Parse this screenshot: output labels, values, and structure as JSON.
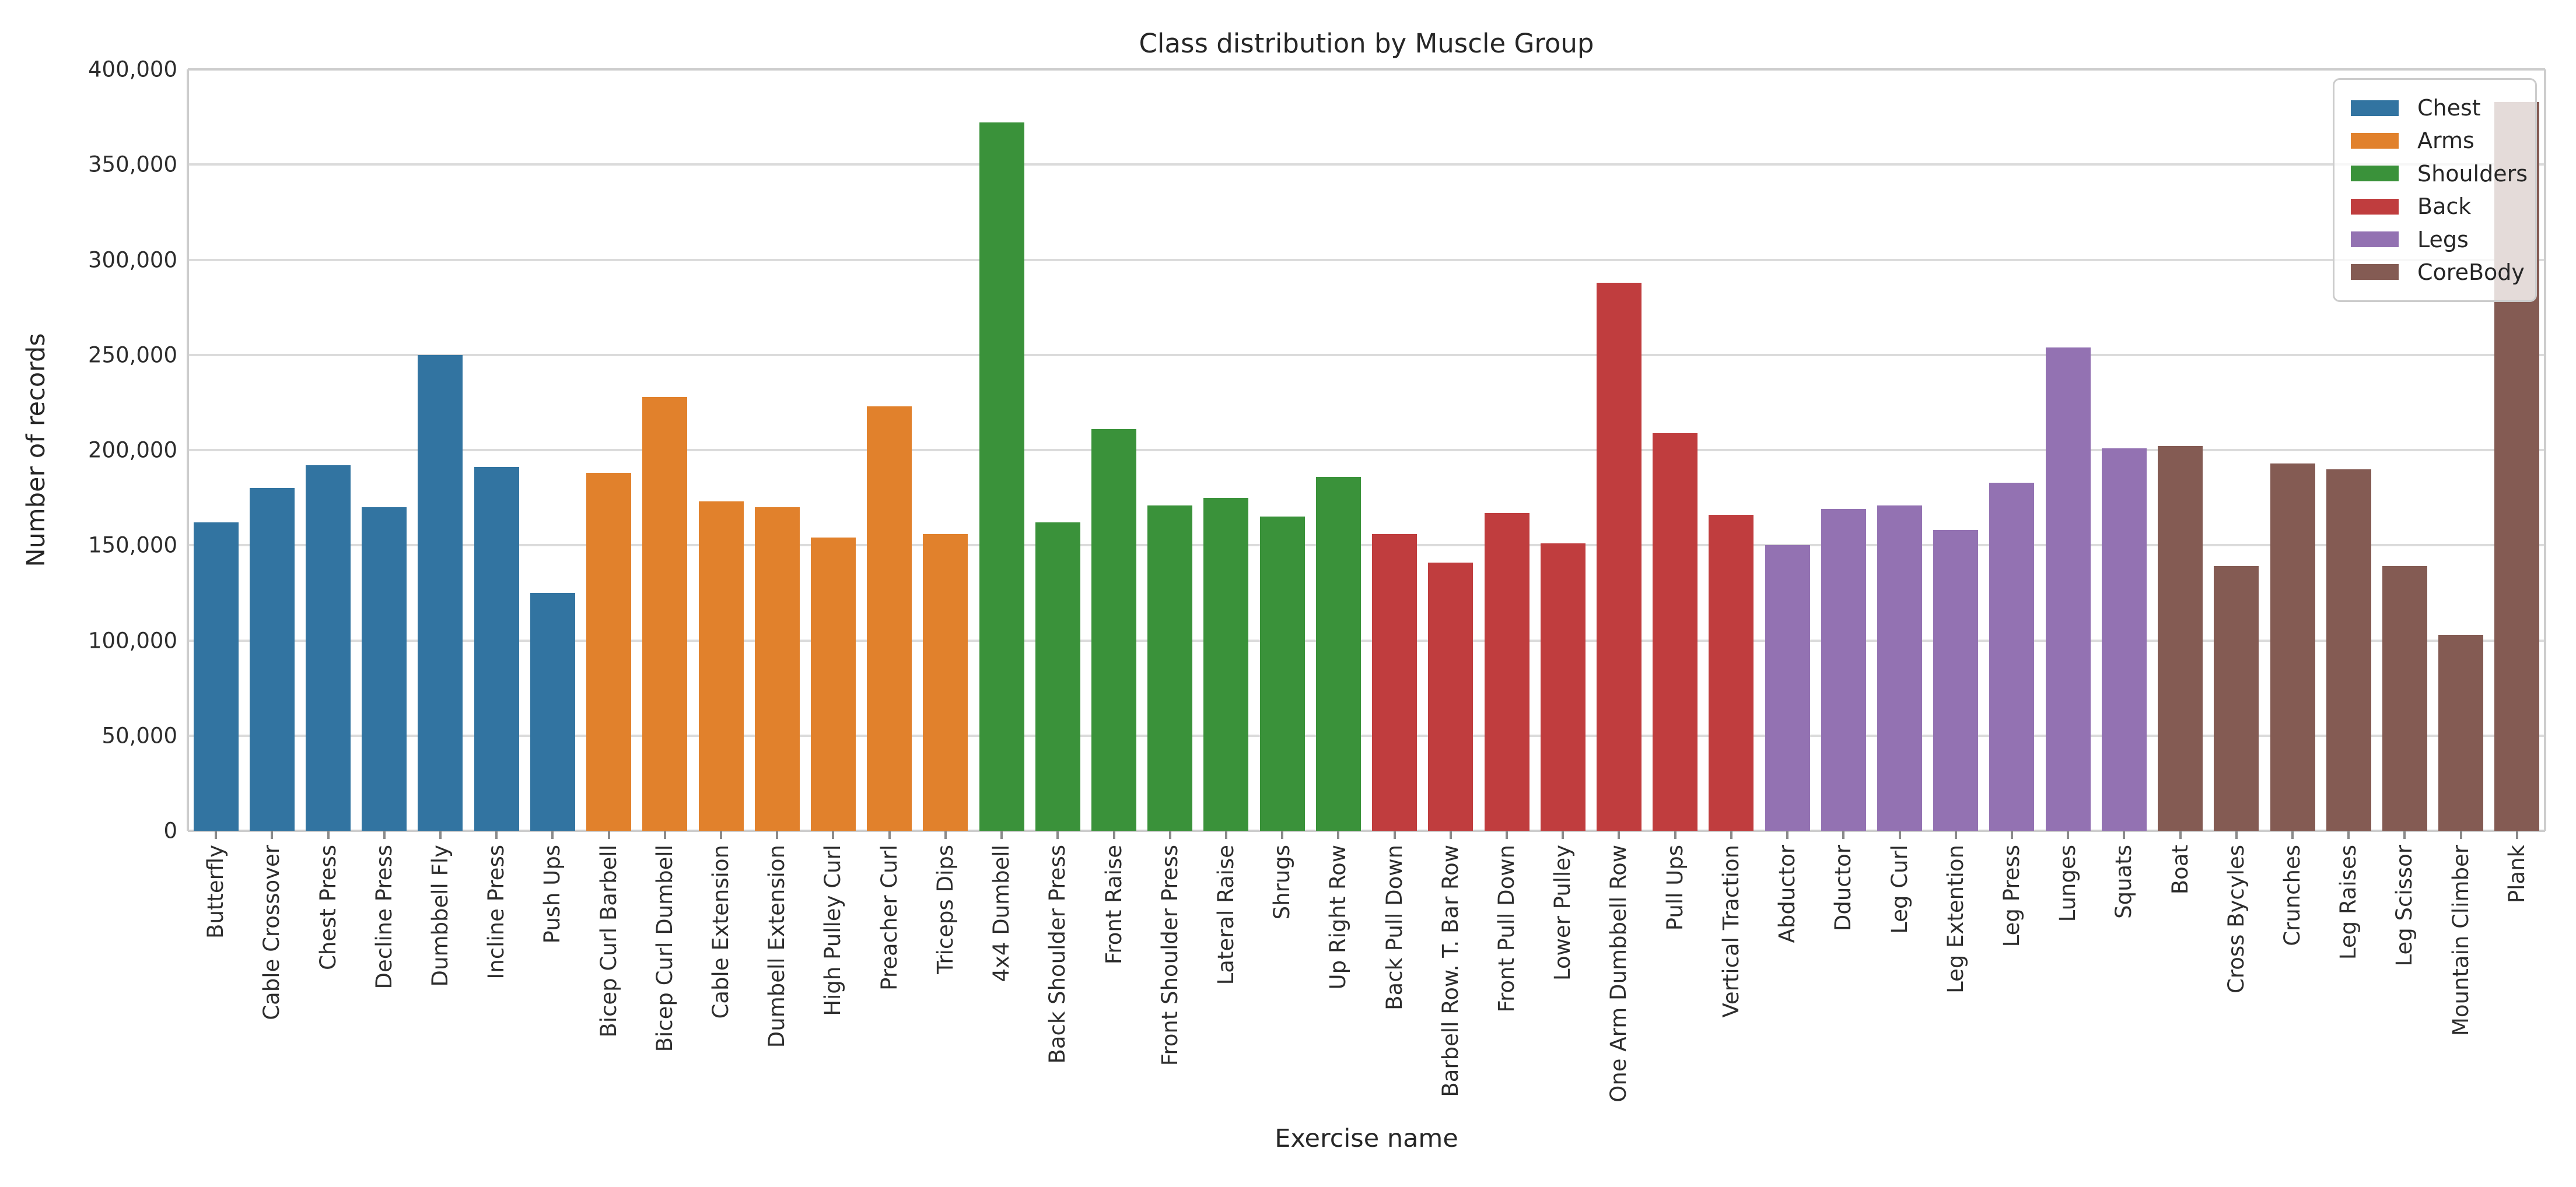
{
  "title": "Class distribution by Muscle Group",
  "axes": {
    "xlabel": "Exercise name",
    "ylabel": "Number of records",
    "y_tick_labels": [
      "0",
      "50,000",
      "100,000",
      "150,000",
      "200,000",
      "250,000",
      "300,000",
      "350,000",
      "400,000"
    ]
  },
  "legend": {
    "items": [
      {
        "label": "Chest",
        "color": "#3274a1"
      },
      {
        "label": "Arms",
        "color": "#e1812c"
      },
      {
        "label": "Shoulders",
        "color": "#3a923a"
      },
      {
        "label": "Back",
        "color": "#c03d3e"
      },
      {
        "label": "Legs",
        "color": "#9372b2"
      },
      {
        "label": "CoreBody",
        "color": "#845b53"
      }
    ]
  },
  "colors": {
    "grid": "#dbdbdb",
    "spine": "#cdcdcd",
    "text": "#262626",
    "background": "#ffffff"
  },
  "chart_data": {
    "type": "bar",
    "title": "Class distribution by Muscle Group",
    "xlabel": "Exercise name",
    "ylabel": "Number of records",
    "ylim": [
      0,
      400000
    ],
    "ytick_step": 50000,
    "grid": true,
    "legend_position": "upper right",
    "series": [
      {
        "name": "Chest",
        "color": "#3274a1",
        "bars": [
          [
            "Butterfly",
            162000
          ],
          [
            "Cable Crossover",
            180000
          ],
          [
            "Chest Press",
            192000
          ],
          [
            "Decline Press",
            170000
          ],
          [
            "Dumbbell Fly",
            250000
          ],
          [
            "Incline Press",
            191000
          ],
          [
            "Push Ups",
            125000
          ]
        ]
      },
      {
        "name": "Arms",
        "color": "#e1812c",
        "bars": [
          [
            "Bicep Curl Barbell",
            188000
          ],
          [
            "Bicep Curl Dumbell",
            228000
          ],
          [
            "Cable Extension",
            173000
          ],
          [
            "Dumbell Extension",
            170000
          ],
          [
            "High Pulley Curl",
            154000
          ],
          [
            "Preacher Curl",
            223000
          ],
          [
            "Triceps Dips",
            156000
          ]
        ]
      },
      {
        "name": "Shoulders",
        "color": "#3a923a",
        "bars": [
          [
            "4x4 Dumbell",
            372000
          ],
          [
            "Back Shoulder Press",
            162000
          ],
          [
            "Front Raise",
            211000
          ],
          [
            "Front Shoulder Press",
            171000
          ],
          [
            "Lateral Raise",
            175000
          ],
          [
            "Shrugs",
            165000
          ],
          [
            "Up Right Row",
            186000
          ]
        ]
      },
      {
        "name": "Back",
        "color": "#c03d3e",
        "bars": [
          [
            "Back Pull Down",
            156000
          ],
          [
            "Barbell Row. T. Bar Row",
            141000
          ],
          [
            "Front Pull Down",
            167000
          ],
          [
            "Lower Pulley",
            151000
          ],
          [
            "One Arm Dumbbell Row",
            288000
          ],
          [
            "Pull Ups",
            209000
          ],
          [
            "Vertical Traction",
            166000
          ]
        ]
      },
      {
        "name": "Legs",
        "color": "#9372b2",
        "bars": [
          [
            "Abductor",
            150000
          ],
          [
            "Dductor",
            169000
          ],
          [
            "Leg Curl",
            171000
          ],
          [
            "Leg Extention",
            158000
          ],
          [
            "Leg Press",
            183000
          ],
          [
            "Lunges",
            254000
          ],
          [
            "Squats",
            201000
          ]
        ]
      },
      {
        "name": "CoreBody",
        "color": "#845b53",
        "bars": [
          [
            "Boat",
            202000
          ],
          [
            "Cross Bycyles",
            139000
          ],
          [
            "Crunches",
            193000
          ],
          [
            "Leg Raises",
            190000
          ],
          [
            "Leg Scissor",
            139000
          ],
          [
            "Mountain Climber",
            103000
          ],
          [
            "Plank",
            383000
          ]
        ]
      }
    ]
  }
}
